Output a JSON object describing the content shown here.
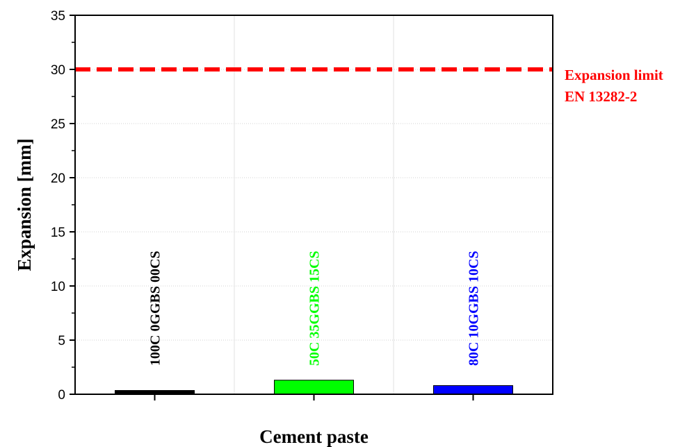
{
  "chart_data": {
    "type": "bar",
    "categories": [
      "100C 0GGBS 00CS",
      "50C 35GGBS 15CS",
      "80C 10GGBS 10CS"
    ],
    "values": [
      0.35,
      1.3,
      0.8
    ],
    "colors": [
      "#000000",
      "#00ff00",
      "#0000ff"
    ],
    "xlabel": "Cement paste",
    "ylabel": "Expansion [mm]",
    "ylim": [
      0,
      35
    ],
    "yticks": [
      0,
      5,
      10,
      15,
      20,
      25,
      30,
      35
    ],
    "grid": true,
    "reference_line": {
      "value": 30,
      "color": "#ff0000",
      "label_line1": "Expansion limit",
      "label_line2": "EN 13282-2"
    }
  }
}
